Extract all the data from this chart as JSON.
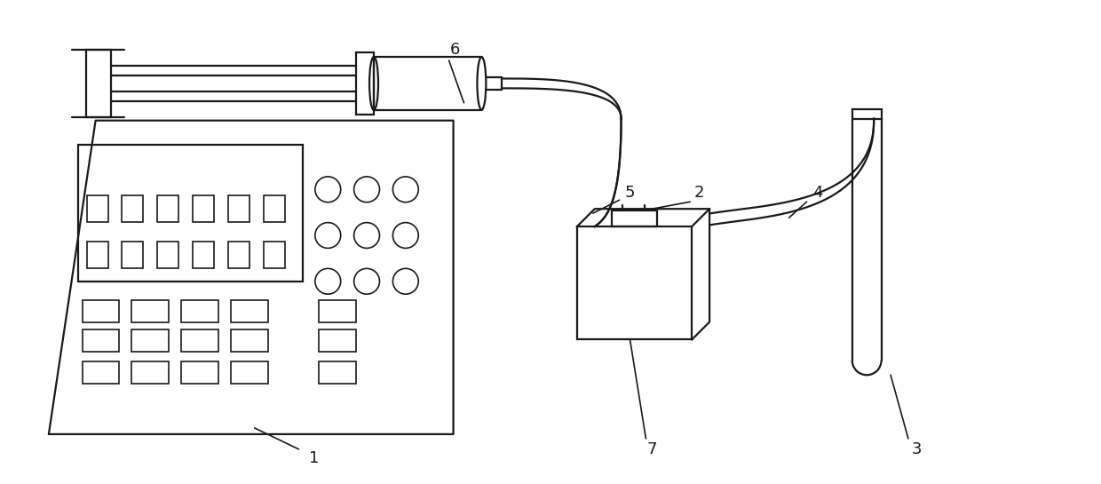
{
  "bg_color": "#ffffff",
  "line_color": "#1a1a1a",
  "lw": 1.6,
  "lw_thin": 1.2,
  "fig_width": 12.4,
  "fig_height": 5.45
}
